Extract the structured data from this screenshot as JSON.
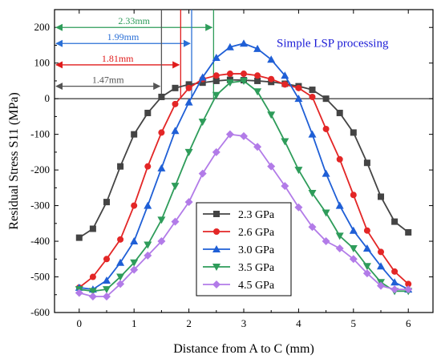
{
  "chart_data": {
    "type": "line",
    "title": "",
    "xlabel": "Distance from A to C (mm)",
    "ylabel": "Residual Stress S11 (MPa)",
    "xlim": [
      -0.45,
      6.45
    ],
    "ylim": [
      -600,
      250
    ],
    "xticks": [
      0,
      1,
      2,
      3,
      4,
      5,
      6
    ],
    "yticks": [
      -600,
      -500,
      -400,
      -300,
      -200,
      -100,
      0,
      100,
      200
    ],
    "grid": false,
    "legend_position": "bottom-center",
    "annotation_text": "Simple LSP processing",
    "annotation_color": "#1a1ad6",
    "width_annotations": [
      {
        "label": "2.33mm",
        "x_start": -0.45,
        "x_end": 2.45,
        "y": 200,
        "color": "#2e9c5a"
      },
      {
        "label": "1.99mm",
        "x_start": -0.45,
        "x_end": 2.05,
        "y": 155,
        "color": "#2a6fd6"
      },
      {
        "label": "1.81mm",
        "x_start": -0.45,
        "x_end": 1.85,
        "y": 95,
        "color": "#e01b1b"
      },
      {
        "label": "1.47mm",
        "x_start": -0.45,
        "x_end": 1.5,
        "y": 35,
        "color": "#555555"
      }
    ],
    "x": [
      0,
      0.25,
      0.5,
      0.75,
      1.0,
      1.25,
      1.5,
      1.75,
      2.0,
      2.25,
      2.5,
      2.75,
      3.0,
      3.25,
      3.5,
      3.75,
      4.0,
      4.25,
      4.5,
      4.75,
      5.0,
      5.25,
      5.5,
      5.75,
      6.0
    ],
    "series": [
      {
        "name": "2.3 GPa",
        "color": "#444444",
        "marker": "square",
        "values": [
          -390,
          -365,
          -290,
          -190,
          -100,
          -40,
          5,
          30,
          40,
          45,
          50,
          53,
          52,
          50,
          47,
          42,
          35,
          25,
          0,
          -40,
          -95,
          -180,
          -275,
          -345,
          -375
        ]
      },
      {
        "name": "2.6 GPa",
        "color": "#e32626",
        "marker": "circle",
        "values": [
          -530,
          -500,
          -450,
          -395,
          -300,
          -190,
          -95,
          -15,
          30,
          55,
          65,
          70,
          70,
          65,
          55,
          40,
          30,
          5,
          -85,
          -170,
          -270,
          -370,
          -430,
          -485,
          -520
        ]
      },
      {
        "name": "3.0 GPa",
        "color": "#1f5fd6",
        "marker": "triangle-up",
        "values": [
          -530,
          -535,
          -510,
          -460,
          -400,
          -300,
          -195,
          -90,
          -10,
          60,
          115,
          145,
          155,
          140,
          110,
          65,
          0,
          -100,
          -210,
          -300,
          -370,
          -420,
          -470,
          -515,
          -535
        ]
      },
      {
        "name": "3.5 GPa",
        "color": "#2e9c5a",
        "marker": "triangle-down",
        "values": [
          -535,
          -540,
          -535,
          -500,
          -460,
          -410,
          -340,
          -245,
          -150,
          -65,
          10,
          45,
          50,
          20,
          -45,
          -120,
          -200,
          -265,
          -320,
          -385,
          -420,
          -470,
          -515,
          -540,
          -540
        ]
      },
      {
        "name": "4.5 GPa",
        "color": "#b27be8",
        "marker": "diamond",
        "values": [
          -545,
          -555,
          -555,
          -520,
          -480,
          -440,
          -400,
          -345,
          -290,
          -210,
          -150,
          -100,
          -105,
          -135,
          -190,
          -245,
          -305,
          -360,
          -400,
          -420,
          -450,
          -490,
          -525,
          -535,
          -535
        ]
      }
    ]
  }
}
